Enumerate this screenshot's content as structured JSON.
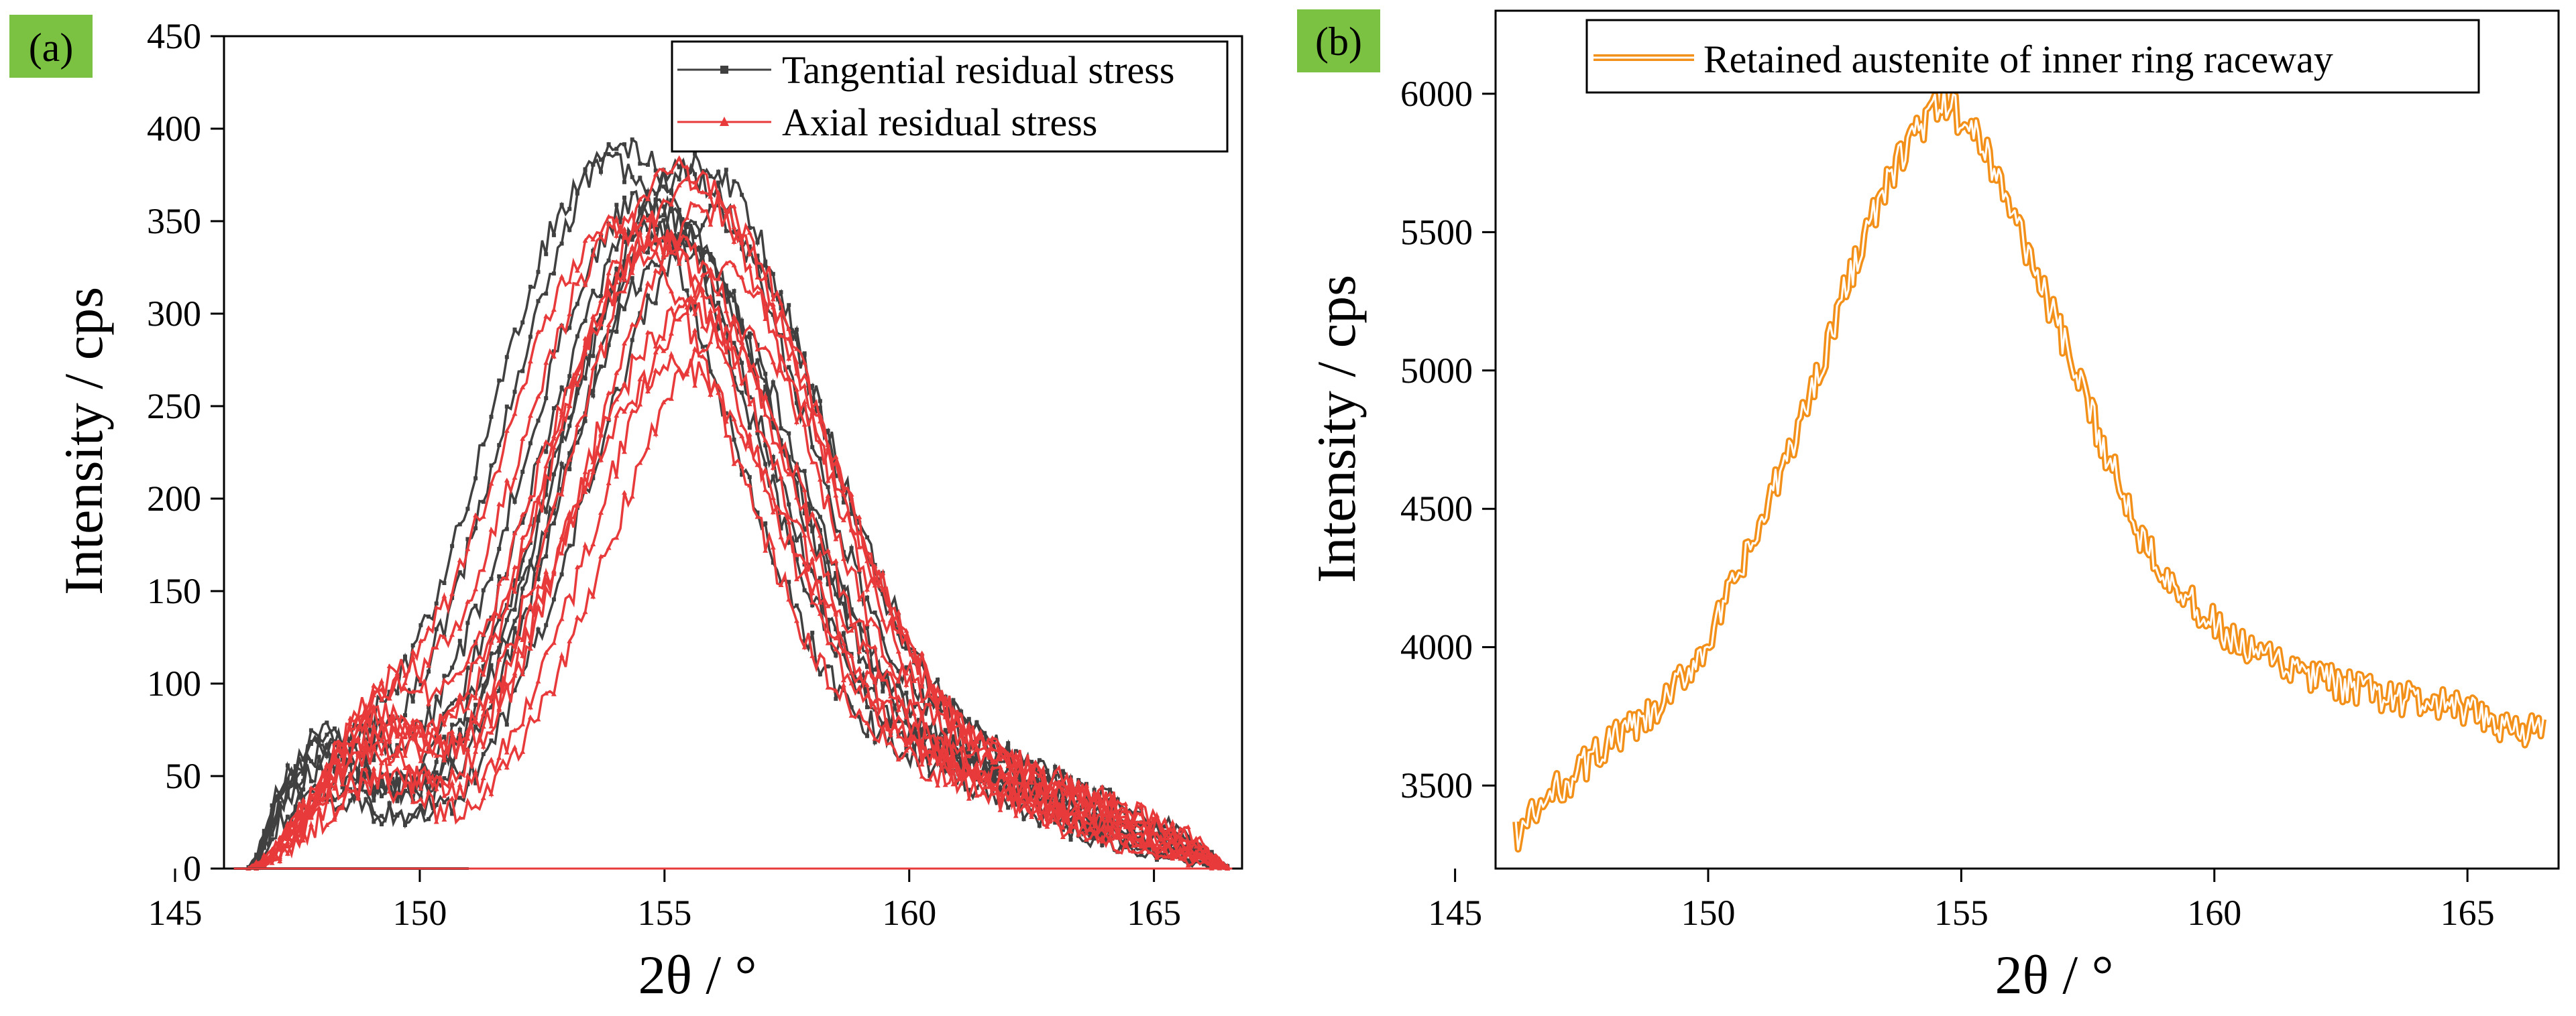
{
  "colors": {
    "panel_tag": "#7cc242",
    "axis": "#000000",
    "tangential": "#404040",
    "axial": "#e83a3a",
    "austenite": "#f39019"
  },
  "chart_data": [
    {
      "panel": "(a)",
      "type": "line",
      "xlabel": "2θ / °",
      "ylabel": "Intensity / cps",
      "xlim": [
        146,
        166.8
      ],
      "ylim": [
        0,
        450
      ],
      "xticks": [
        145,
        150,
        155,
        160,
        165
      ],
      "yticks": [
        0,
        50,
        100,
        150,
        200,
        250,
        300,
        350,
        400,
        450
      ],
      "grid": false,
      "legend_position": "top-right",
      "x_range": [
        146.5,
        166.5
      ],
      "series": [
        {
          "name": "Tangential residual stress",
          "color": "#404040",
          "marker": "square",
          "curve_count": 9,
          "peak_positions": [
            153.8,
            154.2,
            154.6,
            154.9,
            155.1,
            155.4,
            155.7,
            156.0,
            155.3
          ],
          "peak_values": [
            380,
            390,
            360,
            355,
            345,
            375,
            380,
            350,
            335
          ],
          "shoulder_value_at_148": 50,
          "baseline": 0
        },
        {
          "name": "Axial residual stress",
          "color": "#e83a3a",
          "marker": "triangle",
          "curve_count": 11,
          "peak_positions": [
            154.0,
            154.4,
            154.8,
            155.0,
            155.3,
            155.6,
            155.9,
            156.2,
            155.5,
            156.4,
            155.2
          ],
          "peak_values": [
            345,
            350,
            335,
            340,
            375,
            370,
            355,
            320,
            300,
            290,
            270
          ],
          "shoulder_value_at_149": 60,
          "baseline": 0
        }
      ]
    },
    {
      "panel": "(b)",
      "type": "line",
      "xlabel": "2θ / °",
      "ylabel": "Intensity / cps",
      "xlim": [
        145.8,
        166.8
      ],
      "ylim": [
        3200,
        6300
      ],
      "xticks": [
        145,
        150,
        155,
        160,
        165
      ],
      "yticks": [
        3500,
        4000,
        4500,
        5000,
        5500,
        6000
      ],
      "grid": false,
      "legend_position": "top-center",
      "series": [
        {
          "name": "Retained austenite of inner ring raceway",
          "color": "#f39019",
          "x": [
            146.2,
            147.0,
            148.0,
            149.0,
            150.0,
            151.0,
            152.0,
            153.0,
            154.0,
            154.7,
            155.5,
            156.5,
            157.5,
            158.5,
            159.5,
            160.5,
            161.5,
            162.5,
            163.5,
            164.5,
            165.5,
            166.5
          ],
          "y": [
            3320,
            3480,
            3650,
            3760,
            4020,
            4420,
            4900,
            5450,
            5850,
            5970,
            5800,
            5350,
            4870,
            4420,
            4160,
            4000,
            3920,
            3860,
            3820,
            3790,
            3730,
            3690
          ]
        }
      ]
    }
  ]
}
